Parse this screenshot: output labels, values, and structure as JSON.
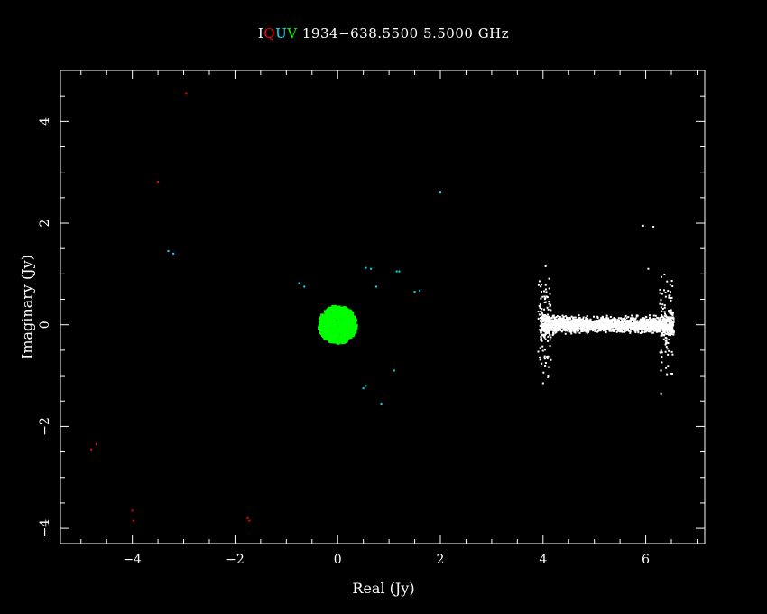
{
  "header": {
    "stokes": [
      {
        "label": "I",
        "color": "#ffffff"
      },
      {
        "label": "Q",
        "color": "#ff0000"
      },
      {
        "label": "U",
        "color": "#00e5ff"
      },
      {
        "label": "V",
        "color": "#00ff00"
      }
    ],
    "title_text": "1934−638.5500 5.5000 GHz"
  },
  "chart_data": {
    "type": "scatter",
    "title": "IQUV 1934−638.5500 5.5000 GHz",
    "xlabel": "Real (Jy)",
    "ylabel": "Imaginary (Jy)",
    "xlim": [
      -5.4,
      7.15
    ],
    "ylim": [
      -4.3,
      5.0
    ],
    "x_ticks": [
      -4,
      -2,
      0,
      2,
      4,
      6
    ],
    "y_ticks": [
      -4,
      -2,
      0,
      2,
      4
    ],
    "x_tick_labels": [
      "−4",
      "−2",
      "0",
      "2",
      "4",
      "6"
    ],
    "y_tick_labels": [
      "−4",
      "−2",
      "0",
      "2",
      "4"
    ],
    "grid": false,
    "series": [
      {
        "name": "I",
        "color": "#ffffff",
        "cluster": {
          "x_range": [
            3.95,
            6.55
          ],
          "y_center": 0,
          "half_height_center": 0.22,
          "half_height_edge": 0.5,
          "count": 2600
        },
        "points": [
          [
            4.0,
            -1.15
          ],
          [
            4.05,
            1.15
          ],
          [
            6.3,
            -1.35
          ],
          [
            5.95,
            1.95
          ],
          [
            6.15,
            1.93
          ],
          [
            6.3,
            -0.9
          ],
          [
            4.1,
            -1.0
          ],
          [
            6.05,
            1.1
          ]
        ]
      },
      {
        "name": "Q",
        "color": "#ff0000",
        "points": [
          [
            -2.95,
            4.55
          ],
          [
            -3.5,
            2.8
          ],
          [
            -4.8,
            -2.45
          ],
          [
            -4.7,
            -2.35
          ],
          [
            -4.0,
            -3.65
          ],
          [
            -3.98,
            -3.85
          ],
          [
            -1.75,
            -3.8
          ],
          [
            -1.72,
            -3.85
          ]
        ]
      },
      {
        "name": "U",
        "color": "#00e5ff",
        "points": [
          [
            2.0,
            2.6
          ],
          [
            -3.3,
            1.45
          ],
          [
            -3.2,
            1.4
          ],
          [
            0.55,
            1.12
          ],
          [
            0.65,
            1.1
          ],
          [
            1.15,
            1.05
          ],
          [
            1.2,
            1.05
          ],
          [
            0.75,
            0.75
          ],
          [
            1.5,
            0.65
          ],
          [
            1.6,
            0.67
          ],
          [
            -0.75,
            0.82
          ],
          [
            -0.65,
            0.75
          ],
          [
            0.5,
            -1.25
          ],
          [
            0.55,
            -1.2
          ],
          [
            1.1,
            -0.9
          ],
          [
            0.85,
            -1.55
          ]
        ]
      },
      {
        "name": "V",
        "color": "#00ff00",
        "cluster": {
          "x_center": 0.0,
          "y_center": 0.0,
          "radius": 0.37,
          "count": 900
        },
        "points": []
      }
    ]
  }
}
